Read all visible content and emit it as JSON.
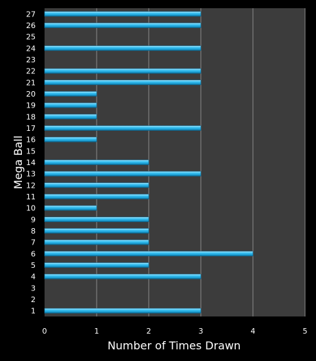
{
  "chart_data": {
    "type": "bar",
    "orientation": "horizontal",
    "title": "",
    "xlabel": "Number of Times Drawn",
    "ylabel": "Mega Ball",
    "xlim": [
      0,
      5
    ],
    "x_ticks": [
      "0",
      "1",
      "2",
      "3",
      "4",
      "5"
    ],
    "grid": "vertical",
    "categories": [
      "1",
      "2",
      "3",
      "4",
      "5",
      "6",
      "7",
      "8",
      "9",
      "10",
      "11",
      "12",
      "13",
      "14",
      "15",
      "16",
      "17",
      "18",
      "19",
      "20",
      "21",
      "22",
      "23",
      "24",
      "25",
      "26",
      "27"
    ],
    "values": [
      3,
      0,
      0,
      3,
      2,
      4,
      2,
      2,
      2,
      1,
      2,
      2,
      3,
      2,
      0,
      1,
      3,
      1,
      1,
      1,
      3,
      3,
      0,
      3,
      0,
      3,
      3
    ],
    "bar_color": "#29aee0",
    "plot_background": "#3c3c3c",
    "background": "#000000"
  }
}
